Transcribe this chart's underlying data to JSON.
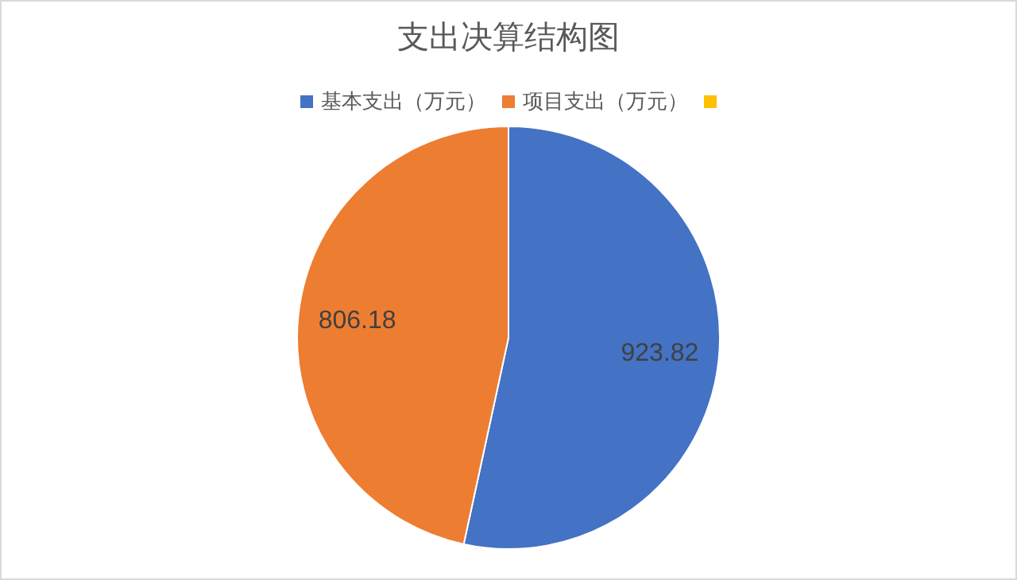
{
  "chart_data": {
    "type": "pie",
    "title": "支出决算结构图",
    "categories": [
      "基本支出（万元）",
      "项目支出（万元）",
      null
    ],
    "values": [
      923.82,
      806.18,
      0
    ],
    "colors": [
      "#4472c4",
      "#ed7d31",
      "#ffc000"
    ],
    "data_labels": true,
    "legend": "top"
  }
}
